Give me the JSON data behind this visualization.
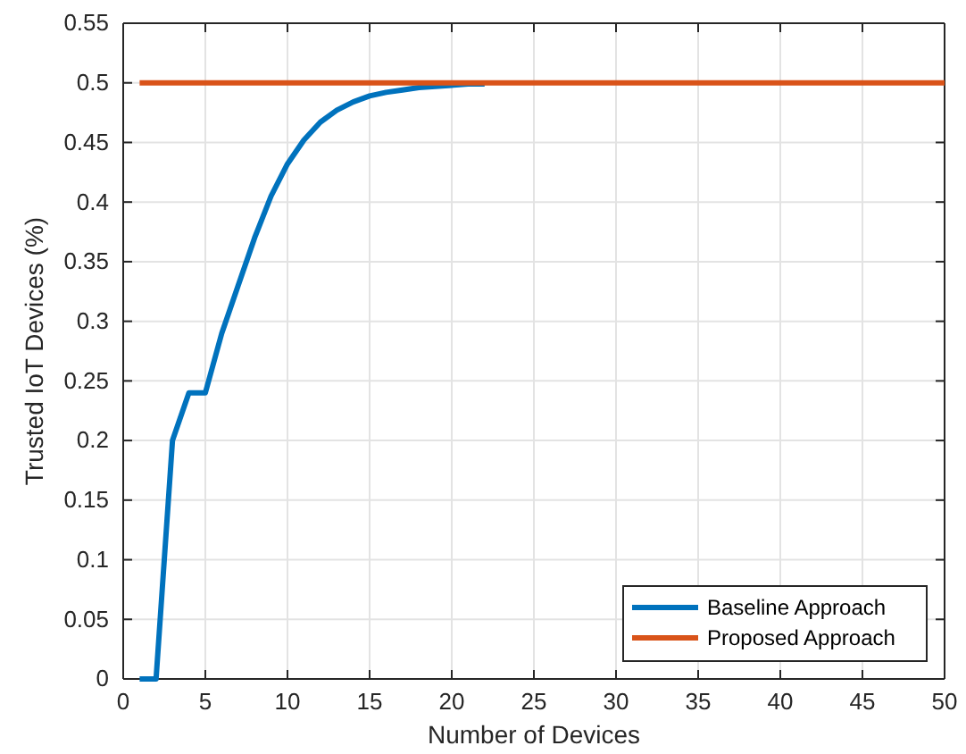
{
  "chart_data": {
    "type": "line",
    "xlabel": "Number of Devices",
    "ylabel": "Trusted IoT Devices (%)",
    "xlim": [
      0,
      50
    ],
    "xticks": [
      0,
      5,
      10,
      15,
      20,
      25,
      30,
      35,
      40,
      45,
      50
    ],
    "ylim": [
      0,
      0.55
    ],
    "yticks": [
      0,
      0.05,
      0.1,
      0.15,
      0.2,
      0.25,
      0.3,
      0.35,
      0.4,
      0.45,
      0.5,
      0.55
    ],
    "grid": true,
    "legend": "bottom right",
    "line_style": "solid",
    "series": [
      {
        "name": "Baseline Approach",
        "color": "#0072bd",
        "x": [
          1,
          2,
          3,
          4,
          5,
          6,
          7,
          8,
          9,
          10,
          11,
          12,
          13,
          14,
          15,
          16,
          17,
          18,
          19,
          20,
          21,
          22
        ],
        "values": [
          0,
          0,
          0.2,
          0.24,
          0.24,
          0.29,
          0.33,
          0.37,
          0.405,
          0.432,
          0.452,
          0.467,
          0.477,
          0.484,
          0.489,
          0.492,
          0.494,
          0.496,
          0.497,
          0.498,
          0.499,
          0.499
        ]
      },
      {
        "name": "Proposed Approach",
        "color": "#d95319",
        "x": [
          1,
          50
        ],
        "values": [
          0.5,
          0.5
        ]
      }
    ]
  }
}
